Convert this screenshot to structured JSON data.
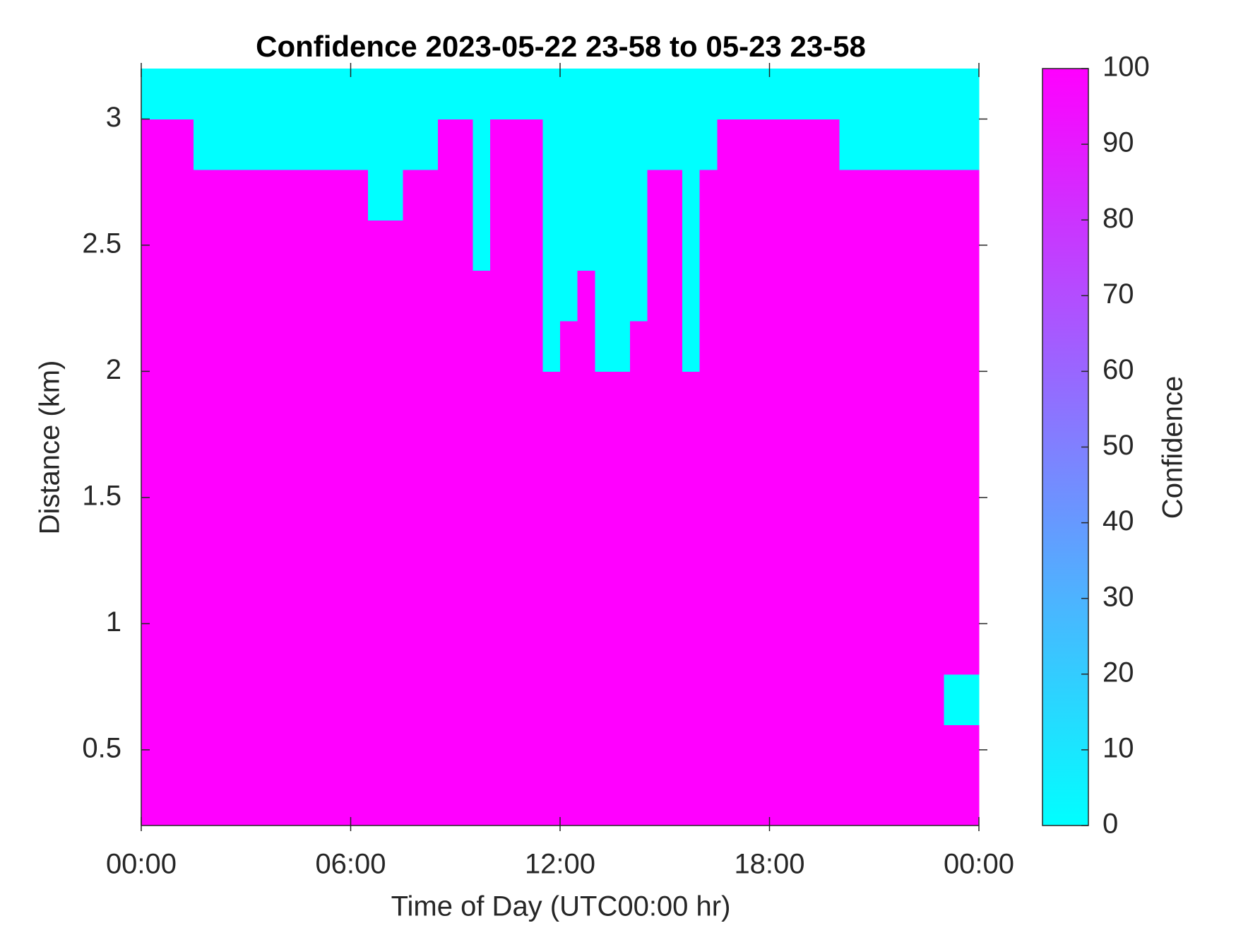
{
  "chart_data": {
    "type": "heatmap",
    "title": "Confidence 2023-05-22 23-58 to 05-23 23-58",
    "x_label": "Time of Day (UTC00:00 hr)",
    "y_label": "Distance (km)",
    "colorbar_label": "Confidence",
    "colormap": "cool",
    "x": [
      0.25,
      0.75,
      1.25,
      1.75,
      2.25,
      2.75,
      3.25,
      3.75,
      4.25,
      4.75,
      5.25,
      5.75,
      6.25,
      6.75,
      7.25,
      7.75,
      8.25,
      8.75,
      9.25,
      9.75,
      10.25,
      10.75,
      11.25,
      11.75,
      12.25,
      12.75,
      13.25,
      13.75,
      14.25,
      14.75,
      15.25,
      15.75,
      16.25,
      16.75,
      17.25,
      17.75,
      18.25,
      18.75,
      19.25,
      19.75,
      20.25,
      20.75,
      21.25,
      21.75,
      22.25,
      22.75,
      23.25,
      23.75
    ],
    "y": [
      0.3,
      0.5,
      0.7,
      0.9,
      1.1,
      1.3,
      1.5,
      1.7,
      1.9,
      2.1,
      2.3,
      2.5,
      2.7,
      2.9,
      3.1
    ],
    "z": [
      [
        100,
        100,
        100,
        100,
        100,
        100,
        100,
        100,
        100,
        100,
        100,
        100,
        100,
        100,
        100,
        100,
        100,
        100,
        100,
        100,
        100,
        100,
        100,
        100,
        100,
        100,
        100,
        100,
        100,
        100,
        100,
        100,
        100,
        100,
        100,
        100,
        100,
        100,
        100,
        100,
        100,
        100,
        100,
        100,
        100,
        100,
        100,
        100
      ],
      [
        100,
        100,
        100,
        100,
        100,
        100,
        100,
        100,
        100,
        100,
        100,
        100,
        100,
        100,
        100,
        100,
        100,
        100,
        100,
        100,
        100,
        100,
        100,
        100,
        100,
        100,
        100,
        100,
        100,
        100,
        100,
        100,
        100,
        100,
        100,
        100,
        100,
        100,
        100,
        100,
        100,
        100,
        100,
        100,
        100,
        100,
        100,
        100
      ],
      [
        100,
        100,
        100,
        100,
        100,
        100,
        100,
        100,
        100,
        100,
        100,
        100,
        100,
        100,
        100,
        100,
        100,
        100,
        100,
        100,
        100,
        100,
        100,
        100,
        100,
        100,
        100,
        100,
        100,
        100,
        100,
        100,
        100,
        100,
        100,
        100,
        100,
        100,
        100,
        100,
        100,
        100,
        100,
        100,
        100,
        100,
        0,
        0
      ],
      [
        100,
        100,
        100,
        100,
        100,
        100,
        100,
        100,
        100,
        100,
        100,
        100,
        100,
        100,
        100,
        100,
        100,
        100,
        100,
        100,
        100,
        100,
        100,
        100,
        100,
        100,
        100,
        100,
        100,
        100,
        100,
        100,
        100,
        100,
        100,
        100,
        100,
        100,
        100,
        100,
        100,
        100,
        100,
        100,
        100,
        100,
        100,
        100
      ],
      [
        100,
        100,
        100,
        100,
        100,
        100,
        100,
        100,
        100,
        100,
        100,
        100,
        100,
        100,
        100,
        100,
        100,
        100,
        100,
        100,
        100,
        100,
        100,
        100,
        100,
        100,
        100,
        100,
        100,
        100,
        100,
        100,
        100,
        100,
        100,
        100,
        100,
        100,
        100,
        100,
        100,
        100,
        100,
        100,
        100,
        100,
        100,
        100
      ],
      [
        100,
        100,
        100,
        100,
        100,
        100,
        100,
        100,
        100,
        100,
        100,
        100,
        100,
        100,
        100,
        100,
        100,
        100,
        100,
        100,
        100,
        100,
        100,
        100,
        100,
        100,
        100,
        100,
        100,
        100,
        100,
        100,
        100,
        100,
        100,
        100,
        100,
        100,
        100,
        100,
        100,
        100,
        100,
        100,
        100,
        100,
        100,
        100
      ],
      [
        100,
        100,
        100,
        100,
        100,
        100,
        100,
        100,
        100,
        100,
        100,
        100,
        100,
        100,
        100,
        100,
        100,
        100,
        100,
        100,
        100,
        100,
        100,
        100,
        100,
        100,
        100,
        100,
        100,
        100,
        100,
        100,
        100,
        100,
        100,
        100,
        100,
        100,
        100,
        100,
        100,
        100,
        100,
        100,
        100,
        100,
        100,
        100
      ],
      [
        100,
        100,
        100,
        100,
        100,
        100,
        100,
        100,
        100,
        100,
        100,
        100,
        100,
        100,
        100,
        100,
        100,
        100,
        100,
        100,
        100,
        100,
        100,
        100,
        100,
        100,
        100,
        100,
        100,
        100,
        100,
        100,
        100,
        100,
        100,
        100,
        100,
        100,
        100,
        100,
        100,
        100,
        100,
        100,
        100,
        100,
        100,
        100
      ],
      [
        100,
        100,
        100,
        100,
        100,
        100,
        100,
        100,
        100,
        100,
        100,
        100,
        100,
        100,
        100,
        100,
        100,
        100,
        100,
        100,
        100,
        100,
        100,
        100,
        100,
        100,
        100,
        100,
        100,
        100,
        100,
        100,
        100,
        100,
        100,
        100,
        100,
        100,
        100,
        100,
        100,
        100,
        100,
        100,
        100,
        100,
        100,
        100
      ],
      [
        100,
        100,
        100,
        100,
        100,
        100,
        100,
        100,
        100,
        100,
        100,
        100,
        100,
        100,
        100,
        100,
        100,
        100,
        100,
        100,
        100,
        100,
        100,
        0,
        100,
        100,
        0,
        0,
        100,
        100,
        100,
        0,
        100,
        100,
        100,
        100,
        100,
        100,
        100,
        100,
        100,
        100,
        100,
        100,
        100,
        100,
        100,
        100
      ],
      [
        100,
        100,
        100,
        100,
        100,
        100,
        100,
        100,
        100,
        100,
        100,
        100,
        100,
        100,
        100,
        100,
        100,
        100,
        100,
        100,
        100,
        100,
        100,
        0,
        0,
        100,
        0,
        0,
        0,
        100,
        100,
        0,
        100,
        100,
        100,
        100,
        100,
        100,
        100,
        100,
        100,
        100,
        100,
        100,
        100,
        100,
        100,
        100
      ],
      [
        100,
        100,
        100,
        100,
        100,
        100,
        100,
        100,
        100,
        100,
        100,
        100,
        100,
        100,
        100,
        100,
        100,
        100,
        100,
        0,
        100,
        100,
        100,
        0,
        0,
        0,
        0,
        0,
        0,
        100,
        100,
        0,
        100,
        100,
        100,
        100,
        100,
        100,
        100,
        100,
        100,
        100,
        100,
        100,
        100,
        100,
        100,
        100
      ],
      [
        100,
        100,
        100,
        100,
        100,
        100,
        100,
        100,
        100,
        100,
        100,
        100,
        100,
        0,
        0,
        100,
        100,
        100,
        100,
        0,
        100,
        100,
        100,
        0,
        0,
        0,
        0,
        0,
        0,
        100,
        100,
        0,
        100,
        100,
        100,
        100,
        100,
        100,
        100,
        100,
        100,
        100,
        100,
        100,
        100,
        100,
        100,
        100
      ],
      [
        100,
        100,
        100,
        0,
        0,
        0,
        0,
        0,
        0,
        0,
        0,
        0,
        0,
        0,
        0,
        0,
        0,
        100,
        100,
        0,
        100,
        100,
        100,
        0,
        0,
        0,
        0,
        0,
        0,
        0,
        0,
        0,
        0,
        100,
        100,
        100,
        100,
        100,
        100,
        100,
        0,
        0,
        0,
        0,
        0,
        0,
        0,
        0
      ],
      [
        0,
        0,
        0,
        0,
        0,
        0,
        0,
        0,
        0,
        0,
        0,
        0,
        0,
        0,
        0,
        0,
        0,
        0,
        0,
        0,
        0,
        0,
        0,
        0,
        0,
        0,
        0,
        0,
        0,
        0,
        0,
        0,
        0,
        0,
        0,
        0,
        0,
        0,
        0,
        0,
        0,
        0,
        0,
        0,
        0,
        0,
        0,
        0
      ]
    ],
    "xlim": [
      0,
      24
    ],
    "xticks": [
      {
        "value": 0,
        "label": "00:00"
      },
      {
        "value": 6,
        "label": "06:00"
      },
      {
        "value": 12,
        "label": "12:00"
      },
      {
        "value": 18,
        "label": "18:00"
      },
      {
        "value": 24,
        "label": "00:00"
      }
    ],
    "ylim": [
      0.2,
      3.2
    ],
    "yticks": [
      0.5,
      1,
      1.5,
      2,
      2.5,
      3
    ],
    "clim": [
      0,
      100
    ],
    "cticks": [
      0,
      10,
      20,
      30,
      40,
      50,
      60,
      70,
      80,
      90,
      100
    ]
  }
}
